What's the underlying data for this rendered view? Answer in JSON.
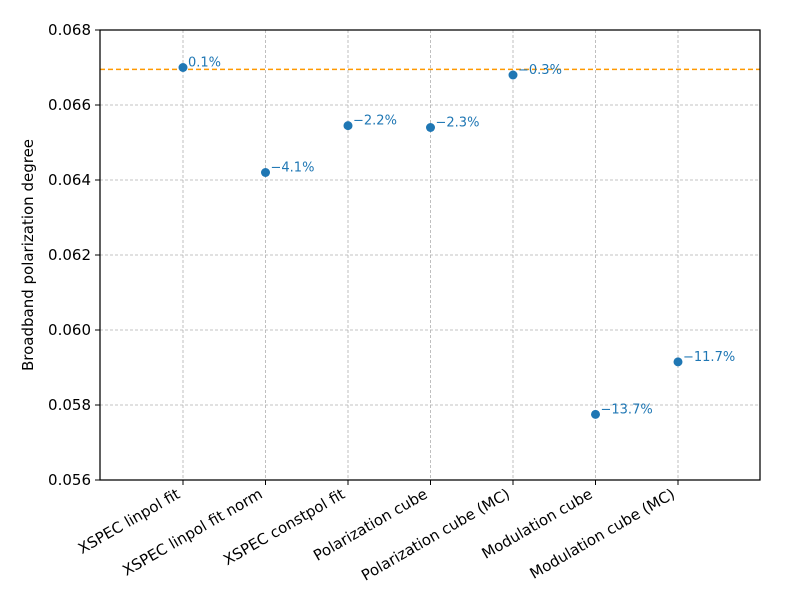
{
  "chart_data": {
    "type": "scatter",
    "title": "",
    "xlabel": "",
    "ylabel": "Broadband polarization degree",
    "categories": [
      "XSPEC linpol fit",
      "XSPEC linpol fit norm",
      "XSPEC constpol fit",
      "Polarization cube",
      "Polarization cube (MC)",
      "Modulation cube",
      "Modulation cube (MC)"
    ],
    "values": [
      0.067,
      0.0642,
      0.06545,
      0.0654,
      0.0668,
      0.05775,
      0.05915
    ],
    "point_labels": [
      "0.1%",
      "−4.1%",
      "−2.2%",
      "−2.3%",
      "−0.3%",
      "−13.7%",
      "−11.7%"
    ],
    "reference_line": {
      "value": 0.06695,
      "style": "dashed",
      "color": "#ff9900"
    },
    "ylim": [
      0.056,
      0.068
    ],
    "yticks": [
      0.056,
      0.058,
      0.06,
      0.062,
      0.064,
      0.066,
      0.068
    ],
    "ytick_labels": [
      "0.056",
      "0.058",
      "0.060",
      "0.062",
      "0.064",
      "0.066",
      "0.068"
    ],
    "grid": true,
    "marker_color": "#1f77b4"
  }
}
